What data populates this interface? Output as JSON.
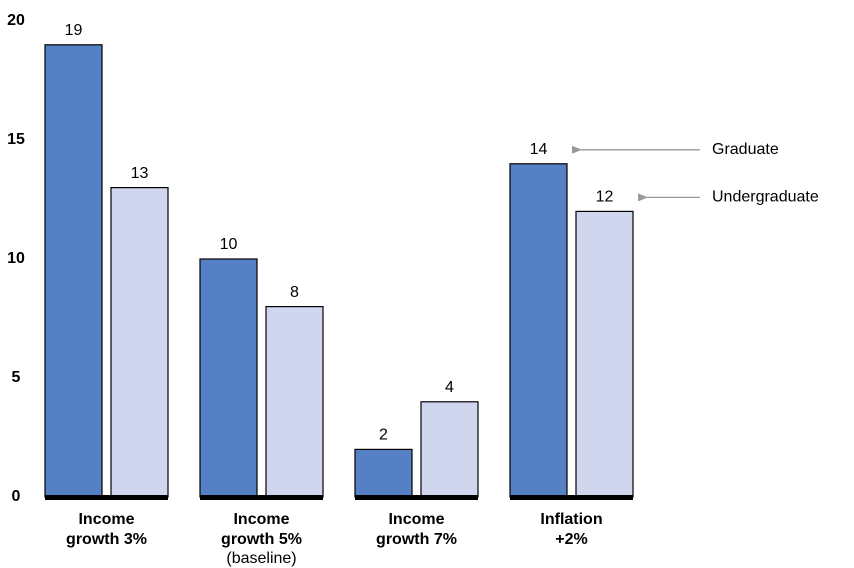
{
  "chart_data": {
    "type": "bar",
    "categories": [
      "Income growth 3%",
      "Income growth 5%",
      "Income growth 7%",
      "Inflation +2%"
    ],
    "category_notes": [
      null,
      "(baseline)",
      null,
      null
    ],
    "series": [
      {
        "name": "Graduate",
        "color": "#5580c6",
        "values": [
          19,
          10,
          2,
          14
        ]
      },
      {
        "name": "Undergraduate",
        "color": "#d1d6ef",
        "values": [
          13,
          8,
          4,
          12
        ]
      }
    ],
    "ylim": [
      0,
      20
    ],
    "yticks": [
      0,
      5,
      10,
      15,
      20
    ],
    "grid": false
  }
}
